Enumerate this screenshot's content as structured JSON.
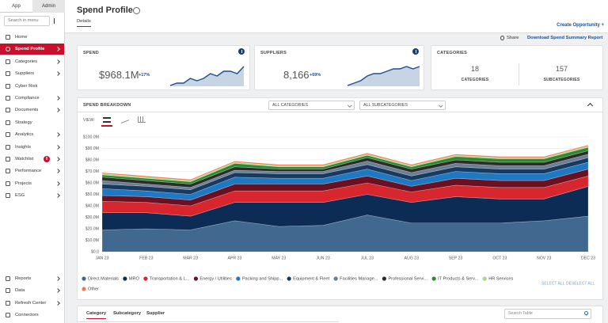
{
  "sidebar": {
    "tabs": [
      "App",
      "Admin"
    ],
    "search_placeholder": "Search in menu",
    "menu": [
      "Home",
      "Spend Profile",
      "Categories",
      "Suppliers",
      "Cyber Risk",
      "Compliance",
      "Documents",
      "Strategy",
      "Analytics",
      "Insights",
      "Watchlist",
      "Performance",
      "Projects",
      "ESG"
    ],
    "watchlist_badge": "8",
    "bottom_menu": [
      "Reports",
      "Data",
      "Refresh Center",
      "Connectors"
    ]
  },
  "header": {
    "title": "Spend Profile",
    "tab": "Details",
    "create": "Create Opportunity +",
    "share": "Share",
    "download": "Download Spend Summary Report"
  },
  "kpis": {
    "spend": {
      "label": "SPEND",
      "value": "$968.1M",
      "change": "+17%",
      "sparkline": [
        3,
        4,
        4,
        6,
        5,
        6,
        8,
        7,
        9,
        9,
        8,
        11
      ]
    },
    "suppliers": {
      "label": "SUPPLIERS",
      "value": "8,166",
      "change": "+69%",
      "sparkline": [
        2,
        3,
        4,
        6,
        7,
        7,
        8,
        9,
        9,
        10,
        9,
        10
      ]
    },
    "categories": {
      "label": "CATEGORIES",
      "count": "18",
      "count_label": "CATEGORIES",
      "sub_count": "157",
      "sub_label": "SUBCATEGORIES"
    }
  },
  "breakdown": {
    "title": "SPEND BREAKDOWN",
    "filters": [
      "ALL CATEGORIES",
      "ALL SUBCATEGORIES"
    ],
    "view_label": "VIEW:",
    "select_all": "SELECT ALL",
    "deselect_all": "DESELECT ALL"
  },
  "chart_data": {
    "type": "stacked_area",
    "categories": [
      "JAN 23",
      "FEB 23",
      "MAR 23",
      "APR 23",
      "MAY 23",
      "JUN 23",
      "JUL 23",
      "AUG 23",
      "SEP 23",
      "OCT 23",
      "NOV 23",
      "DEC 23"
    ],
    "ylim": [
      0,
      100
    ],
    "yticks": [
      {
        "value": 0,
        "label": "$0.0"
      },
      {
        "value": 10,
        "label": "$10.0M"
      },
      {
        "value": 20,
        "label": "$20.0M"
      },
      {
        "value": 30,
        "label": "$30.0M"
      },
      {
        "value": 40,
        "label": "$40.0M"
      },
      {
        "value": 50,
        "label": "$50.0M"
      },
      {
        "value": 60,
        "label": "$60.0M"
      },
      {
        "value": 70,
        "label": "$70.0M"
      },
      {
        "value": 80,
        "label": "$80.0M"
      },
      {
        "value": 90,
        "label": "$90.0M"
      },
      {
        "value": 100,
        "label": "$100.0M"
      }
    ],
    "grid": true,
    "series": [
      {
        "name": "Direct Materials",
        "color": "#41688f",
        "values": [
          19,
          20,
          19,
          27,
          22,
          23,
          32,
          25,
          25,
          25,
          27,
          31
        ]
      },
      {
        "name": "MRO",
        "color": "#0d2c55",
        "values": [
          15,
          14,
          12,
          16,
          21,
          20,
          18,
          18,
          23,
          21,
          19,
          26
        ]
      },
      {
        "name": "Transportation & L...",
        "color": "#d7262d",
        "values": [
          10,
          9,
          9,
          10,
          10,
          10,
          10,
          9,
          10,
          10,
          10,
          9
        ]
      },
      {
        "name": "Energy / Utilities",
        "color": "#6a1020",
        "values": [
          5,
          5,
          5,
          6,
          6,
          6,
          6,
          5,
          6,
          6,
          6,
          6
        ]
      },
      {
        "name": "Packing and Shipp...",
        "color": "#1f79c2",
        "values": [
          6,
          5,
          5,
          6,
          5,
          5,
          6,
          5,
          6,
          6,
          6,
          6
        ]
      },
      {
        "name": "Equipment & Fleet",
        "color": "#173a62",
        "values": [
          4,
          4,
          4,
          4,
          4,
          4,
          4,
          4,
          4,
          4,
          4,
          4
        ]
      },
      {
        "name": "Facilities Manage...",
        "color": "#6c7f93",
        "values": [
          3,
          2,
          2,
          2,
          2,
          2,
          3,
          3,
          3,
          3,
          3,
          3
        ]
      },
      {
        "name": "Professional Servi...",
        "color": "#2c2c2c",
        "values": [
          3,
          3,
          3,
          3,
          2,
          2,
          3,
          3,
          3,
          3,
          3,
          3
        ]
      },
      {
        "name": "IT Products & Serv...",
        "color": "#2f8a2f",
        "values": [
          2,
          2,
          2,
          3,
          2,
          2,
          2,
          2,
          3,
          3,
          3,
          3
        ]
      },
      {
        "name": "HR Services",
        "color": "#a7d98b",
        "values": [
          1,
          1,
          1,
          1,
          1,
          1,
          1,
          1,
          1,
          1,
          1,
          1
        ]
      },
      {
        "name": "Other",
        "color": "#f07b4b",
        "values": [
          1,
          1,
          1,
          1,
          1,
          1,
          1,
          1,
          1,
          1,
          1,
          1
        ]
      }
    ]
  },
  "table": {
    "tabs": [
      "Category",
      "Subcategory",
      "Supplier"
    ],
    "search_placeholder": "Search Table"
  }
}
